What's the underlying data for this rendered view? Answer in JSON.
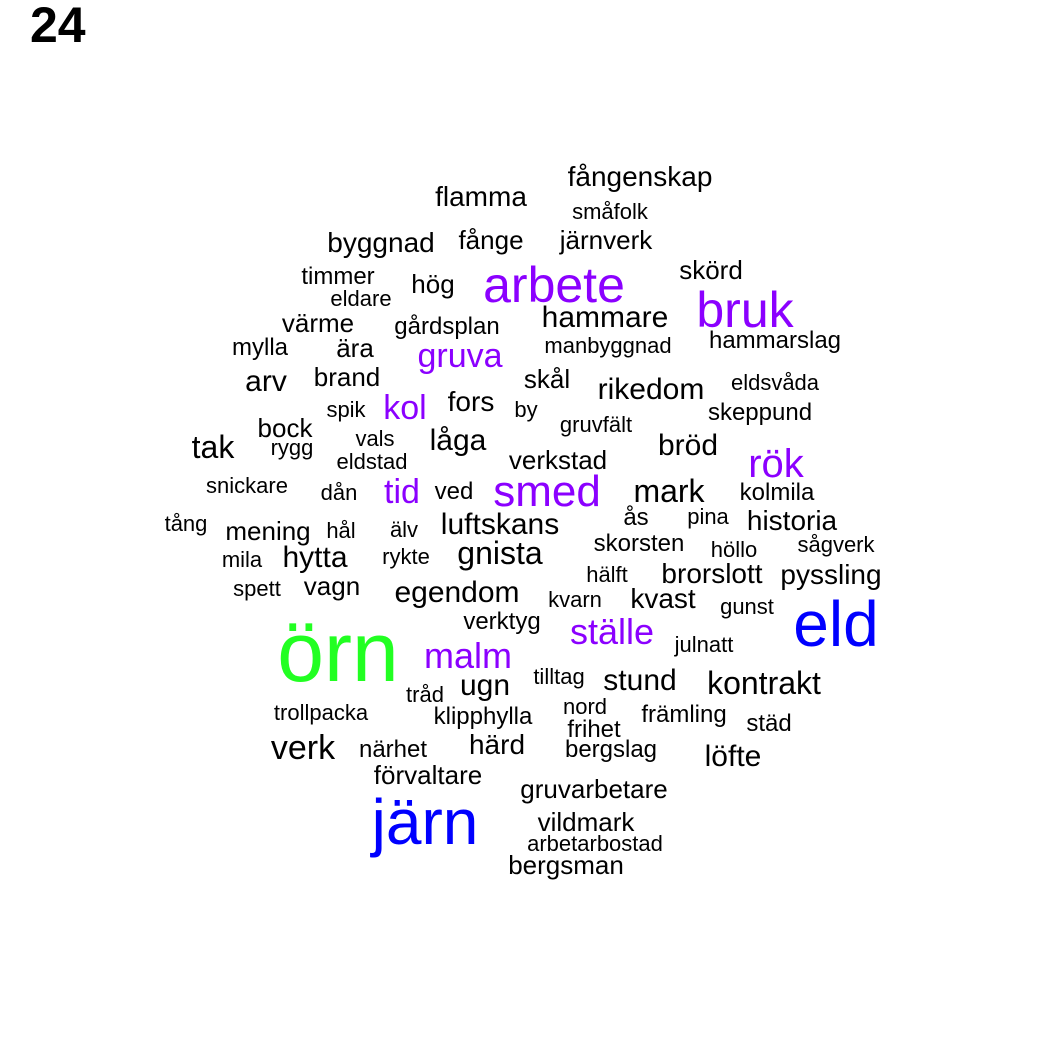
{
  "page_number": "24",
  "colors": {
    "black": "#000000",
    "purple": "#8b00ff",
    "blue": "#0000ff",
    "green": "#22ff22"
  },
  "words": [
    {
      "text": "örn",
      "color": "#22ff22"
    },
    {
      "text": "järn",
      "color": "#0000ff"
    },
    {
      "text": "eld",
      "color": "#0000ff"
    },
    {
      "text": "arbete",
      "color": "#8b00ff"
    },
    {
      "text": "bruk",
      "color": "#8b00ff"
    },
    {
      "text": "smed",
      "color": "#8b00ff"
    },
    {
      "text": "rök",
      "color": "#8b00ff"
    },
    {
      "text": "ställe",
      "color": "#8b00ff"
    },
    {
      "text": "malm",
      "color": "#8b00ff"
    },
    {
      "text": "gruva",
      "color": "#8b00ff"
    },
    {
      "text": "kol",
      "color": "#8b00ff"
    },
    {
      "text": "tid",
      "color": "#8b00ff"
    },
    {
      "text": "fångenskap",
      "color": "#000000"
    },
    {
      "text": "flamma",
      "color": "#000000"
    },
    {
      "text": "småfolk",
      "color": "#000000"
    },
    {
      "text": "byggnad",
      "color": "#000000"
    },
    {
      "text": "fånge",
      "color": "#000000"
    },
    {
      "text": "järnverk",
      "color": "#000000"
    },
    {
      "text": "skörd",
      "color": "#000000"
    },
    {
      "text": "timmer",
      "color": "#000000"
    },
    {
      "text": "hög",
      "color": "#000000"
    },
    {
      "text": "eldare",
      "color": "#000000"
    },
    {
      "text": "hammare",
      "color": "#000000"
    },
    {
      "text": "värme",
      "color": "#000000"
    },
    {
      "text": "gårdsplan",
      "color": "#000000"
    },
    {
      "text": "hammarslag",
      "color": "#000000"
    },
    {
      "text": "mylla",
      "color": "#000000"
    },
    {
      "text": "ära",
      "color": "#000000"
    },
    {
      "text": "manbyggnad",
      "color": "#000000"
    },
    {
      "text": "arv",
      "color": "#000000"
    },
    {
      "text": "brand",
      "color": "#000000"
    },
    {
      "text": "skål",
      "color": "#000000"
    },
    {
      "text": "rikedom",
      "color": "#000000"
    },
    {
      "text": "eldsvåda",
      "color": "#000000"
    },
    {
      "text": "fors",
      "color": "#000000"
    },
    {
      "text": "spik",
      "color": "#000000"
    },
    {
      "text": "by",
      "color": "#000000"
    },
    {
      "text": "skeppund",
      "color": "#000000"
    },
    {
      "text": "bock",
      "color": "#000000"
    },
    {
      "text": "gruvfält",
      "color": "#000000"
    },
    {
      "text": "tak",
      "color": "#000000"
    },
    {
      "text": "rygg",
      "color": "#000000"
    },
    {
      "text": "vals",
      "color": "#000000"
    },
    {
      "text": "låga",
      "color": "#000000"
    },
    {
      "text": "bröd",
      "color": "#000000"
    },
    {
      "text": "eldstad",
      "color": "#000000"
    },
    {
      "text": "verkstad",
      "color": "#000000"
    },
    {
      "text": "snickare",
      "color": "#000000"
    },
    {
      "text": "dån",
      "color": "#000000"
    },
    {
      "text": "ved",
      "color": "#000000"
    },
    {
      "text": "mark",
      "color": "#000000"
    },
    {
      "text": "kolmila",
      "color": "#000000"
    },
    {
      "text": "tång",
      "color": "#000000"
    },
    {
      "text": "mening",
      "color": "#000000"
    },
    {
      "text": "hål",
      "color": "#000000"
    },
    {
      "text": "älv",
      "color": "#000000"
    },
    {
      "text": "luftskans",
      "color": "#000000"
    },
    {
      "text": "ås",
      "color": "#000000"
    },
    {
      "text": "pina",
      "color": "#000000"
    },
    {
      "text": "historia",
      "color": "#000000"
    },
    {
      "text": "mila",
      "color": "#000000"
    },
    {
      "text": "hytta",
      "color": "#000000"
    },
    {
      "text": "rykte",
      "color": "#000000"
    },
    {
      "text": "gnista",
      "color": "#000000"
    },
    {
      "text": "skorsten",
      "color": "#000000"
    },
    {
      "text": "höllo",
      "color": "#000000"
    },
    {
      "text": "sågverk",
      "color": "#000000"
    },
    {
      "text": "spett",
      "color": "#000000"
    },
    {
      "text": "vagn",
      "color": "#000000"
    },
    {
      "text": "hälft",
      "color": "#000000"
    },
    {
      "text": "brorslott",
      "color": "#000000"
    },
    {
      "text": "pyssling",
      "color": "#000000"
    },
    {
      "text": "egendom",
      "color": "#000000"
    },
    {
      "text": "kvarn",
      "color": "#000000"
    },
    {
      "text": "kvast",
      "color": "#000000"
    },
    {
      "text": "gunst",
      "color": "#000000"
    },
    {
      "text": "verktyg",
      "color": "#000000"
    },
    {
      "text": "julnatt",
      "color": "#000000"
    },
    {
      "text": "tilltag",
      "color": "#000000"
    },
    {
      "text": "stund",
      "color": "#000000"
    },
    {
      "text": "kontrakt",
      "color": "#000000"
    },
    {
      "text": "tråd",
      "color": "#000000"
    },
    {
      "text": "ugn",
      "color": "#000000"
    },
    {
      "text": "trollpacka",
      "color": "#000000"
    },
    {
      "text": "klipphylla",
      "color": "#000000"
    },
    {
      "text": "nord",
      "color": "#000000"
    },
    {
      "text": "främling",
      "color": "#000000"
    },
    {
      "text": "frihet",
      "color": "#000000"
    },
    {
      "text": "städ",
      "color": "#000000"
    },
    {
      "text": "verk",
      "color": "#000000"
    },
    {
      "text": "närhet",
      "color": "#000000"
    },
    {
      "text": "härd",
      "color": "#000000"
    },
    {
      "text": "bergslag",
      "color": "#000000"
    },
    {
      "text": "löfte",
      "color": "#000000"
    },
    {
      "text": "förvaltare",
      "color": "#000000"
    },
    {
      "text": "gruvarbetare",
      "color": "#000000"
    },
    {
      "text": "vildmark",
      "color": "#000000"
    },
    {
      "text": "arbetarbostad",
      "color": "#000000"
    },
    {
      "text": "bergsman",
      "color": "#000000"
    }
  ]
}
